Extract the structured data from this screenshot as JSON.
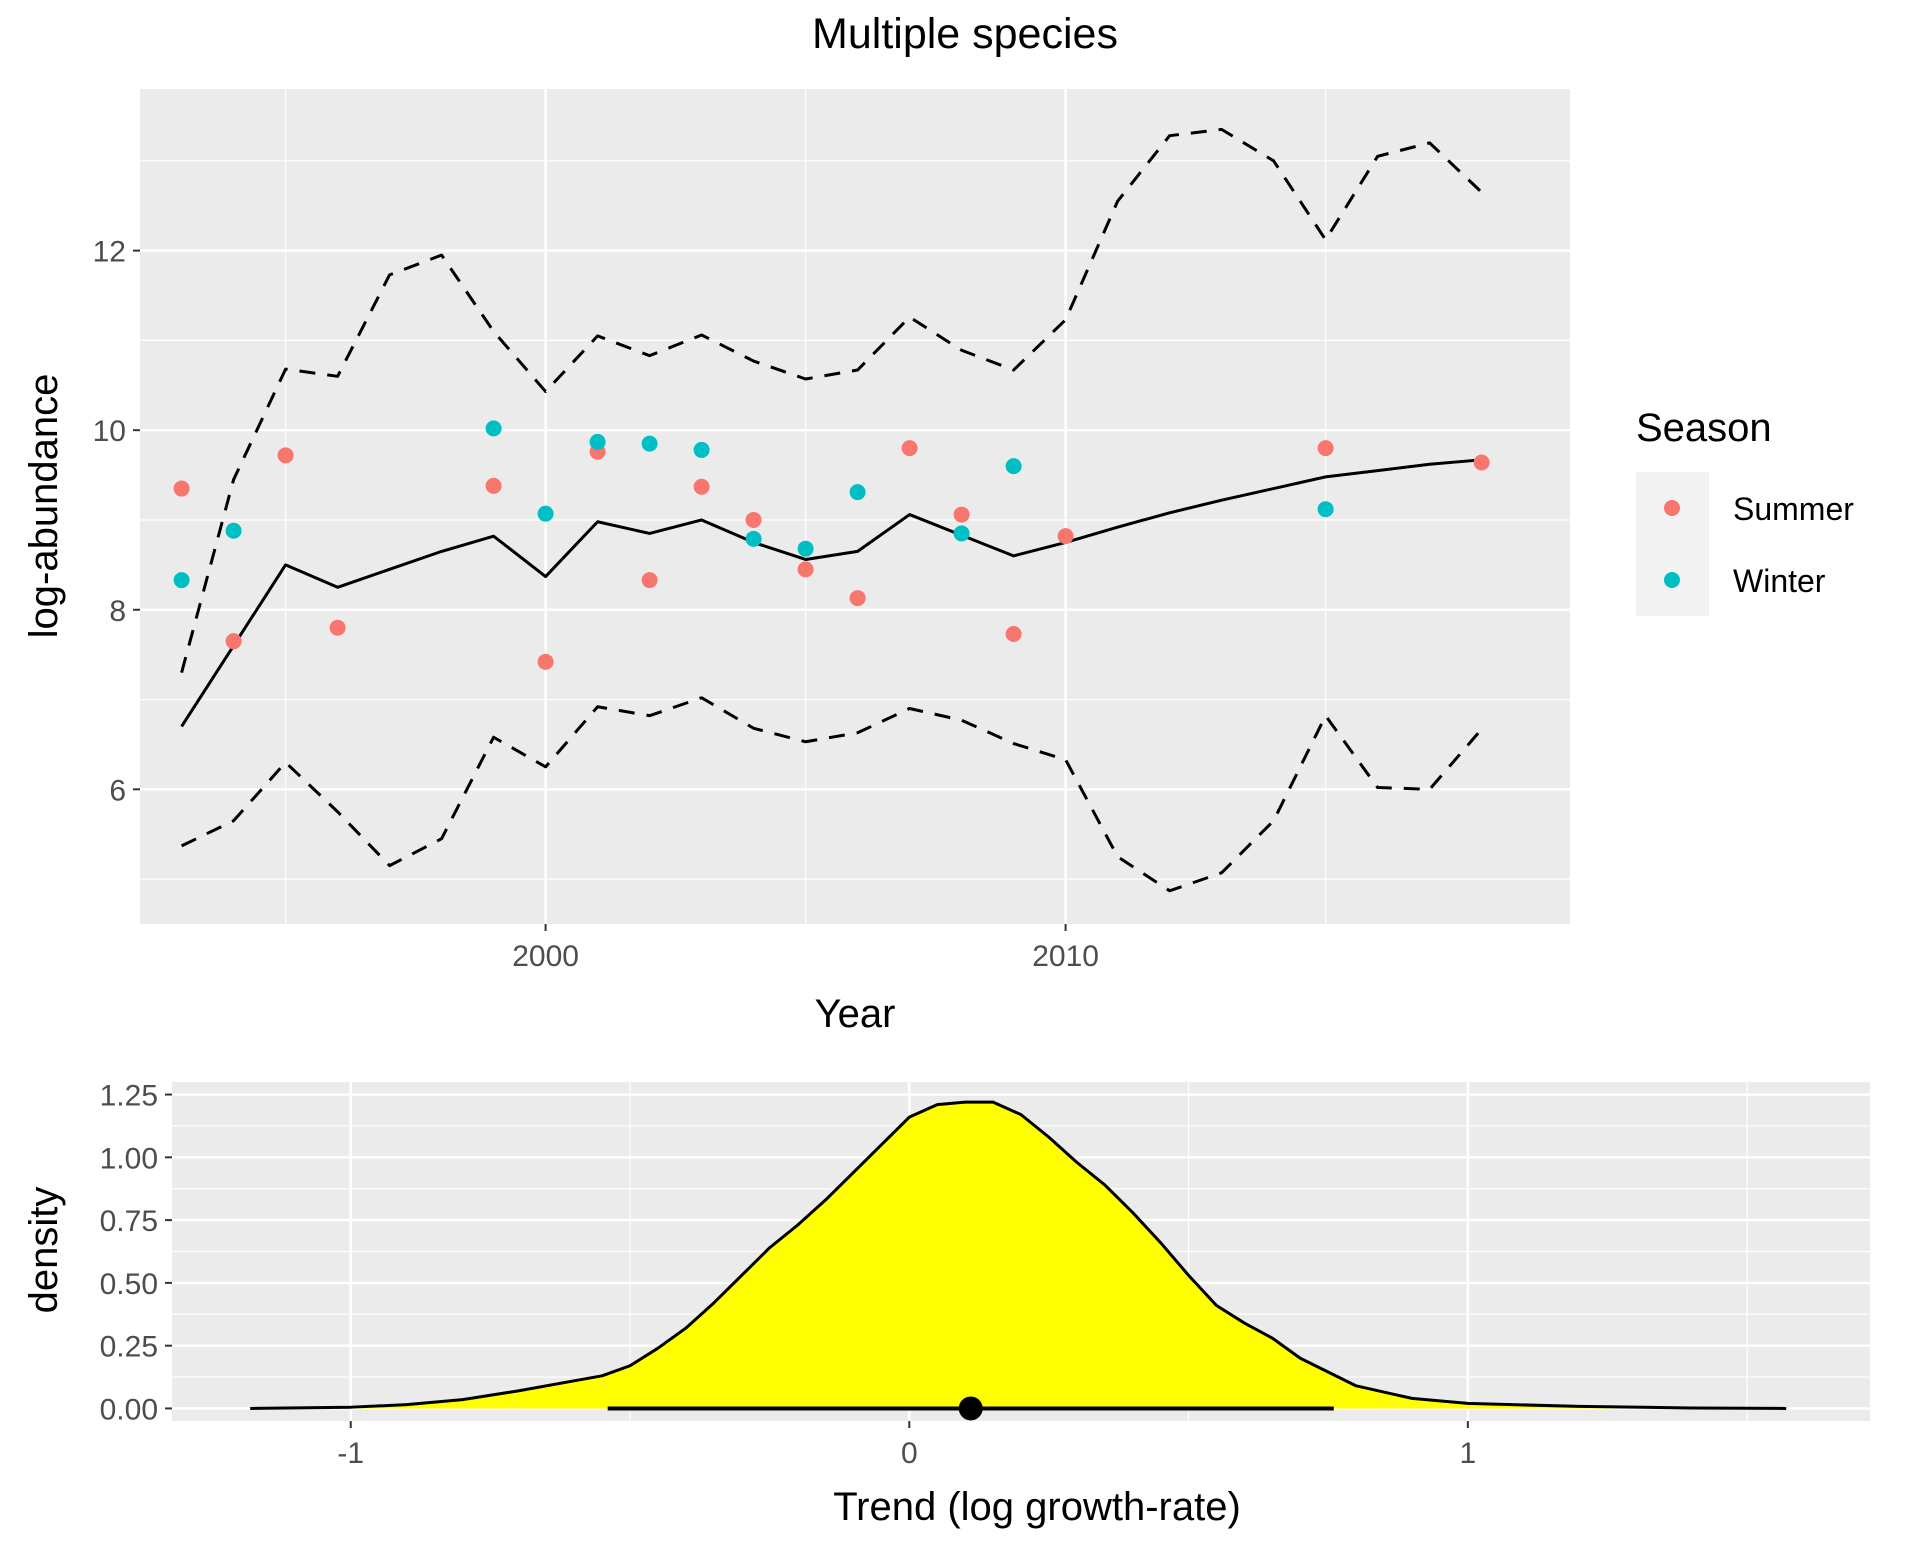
{
  "colors": {
    "panel_bg": "#ebebeb",
    "grid": "#ffffff",
    "summer": "#f8766d",
    "winter": "#00bfc4",
    "fill": "#ffff00",
    "line": "#000000",
    "tick_text": "#4d4d4d"
  },
  "chart_data": [
    {
      "type": "line",
      "title": "Multiple species",
      "xlabel": "Year",
      "ylabel": "log-abundance",
      "xlim": [
        1992.2,
        2019.7
      ],
      "ylim": [
        4.5,
        13.8
      ],
      "x_ticks": [
        2000,
        2010
      ],
      "x_tick_labels": [
        "2000",
        "2010"
      ],
      "y_ticks": [
        6,
        8,
        10,
        12
      ],
      "y_tick_labels": [
        "6",
        "8",
        "10",
        "12"
      ],
      "grid": true,
      "legend": {
        "title": "Season",
        "position": "right",
        "entries": [
          "Summer",
          "Winter"
        ]
      },
      "series": [
        {
          "style": "solid",
          "x": [
            1993,
            1994,
            1995,
            1996,
            1997,
            1998,
            1999,
            2000,
            2001,
            2002,
            2003,
            2004,
            2005,
            2006,
            2007,
            2008,
            2009,
            2010,
            2011,
            2012,
            2013,
            2014,
            2015,
            2016,
            2017,
            2018
          ],
          "y": [
            6.7,
            7.6,
            8.5,
            8.25,
            8.45,
            8.65,
            8.82,
            8.37,
            8.98,
            8.85,
            9.0,
            8.75,
            8.56,
            8.65,
            9.06,
            8.83,
            8.6,
            8.75,
            8.92,
            9.08,
            9.22,
            9.35,
            9.48,
            9.55,
            9.62,
            9.67
          ]
        },
        {
          "style": "dashed",
          "x": [
            1993,
            1994,
            1995,
            1996,
            1997,
            1998,
            1999,
            2000,
            2001,
            2002,
            2003,
            2004,
            2005,
            2006,
            2007,
            2008,
            2009,
            2010,
            2011,
            2012,
            2013,
            2014,
            2015,
            2016,
            2017,
            2018
          ],
          "y": [
            7.3,
            9.45,
            10.68,
            10.6,
            11.73,
            11.95,
            11.1,
            10.43,
            11.05,
            10.83,
            11.06,
            10.77,
            10.57,
            10.67,
            11.26,
            10.89,
            10.67,
            11.23,
            12.55,
            13.28,
            13.35,
            13.0,
            12.12,
            13.05,
            13.2,
            12.65
          ]
        },
        {
          "style": "dashed",
          "x": [
            1993,
            1994,
            1995,
            1996,
            1997,
            1998,
            1999,
            2000,
            2001,
            2002,
            2003,
            2004,
            2005,
            2006,
            2007,
            2008,
            2009,
            2010,
            2011,
            2012,
            2013,
            2014,
            2015,
            2016,
            2017,
            2018
          ],
          "y": [
            5.37,
            5.65,
            6.3,
            5.75,
            5.15,
            5.45,
            6.58,
            6.25,
            6.92,
            6.82,
            7.02,
            6.68,
            6.53,
            6.63,
            6.9,
            6.77,
            6.51,
            6.33,
            5.25,
            4.87,
            5.07,
            5.65,
            6.82,
            6.02,
            6.0,
            6.67
          ]
        },
        {
          "name": "Summer",
          "type": "scatter",
          "x": [
            1993,
            1994,
            1995,
            1996,
            1999,
            2000,
            2001,
            2002,
            2003,
            2004,
            2005,
            2006,
            2007,
            2008,
            2009,
            2010,
            2015,
            2018
          ],
          "y": [
            9.35,
            7.65,
            9.72,
            7.8,
            9.38,
            7.42,
            9.76,
            8.33,
            9.37,
            9.0,
            8.45,
            8.13,
            9.8,
            9.06,
            7.73,
            8.82,
            9.8,
            9.64
          ]
        },
        {
          "name": "Winter",
          "type": "scatter",
          "x": [
            1993,
            1994,
            1999,
            2000,
            2001,
            2002,
            2003,
            2004,
            2005,
            2006,
            2008,
            2009,
            2015
          ],
          "y": [
            8.33,
            8.88,
            10.02,
            9.07,
            9.87,
            9.85,
            9.78,
            8.79,
            8.68,
            9.31,
            8.85,
            9.6,
            9.12
          ]
        }
      ]
    },
    {
      "type": "area",
      "xlabel": "Trend (log growth-rate)",
      "ylabel": "density",
      "xlim": [
        -1.32,
        1.72
      ],
      "ylim": [
        -0.05,
        1.3
      ],
      "x_ticks": [
        -1,
        0,
        1
      ],
      "x_tick_labels": [
        "-1",
        "0",
        "1"
      ],
      "y_ticks": [
        0,
        0.25,
        0.5,
        0.75,
        1.0,
        1.25
      ],
      "y_tick_labels": [
        "0.00",
        "0.25",
        "0.50",
        "0.75",
        "1.00",
        "1.25"
      ],
      "grid": true,
      "x": [
        -1.18,
        -1.0,
        -0.9,
        -0.8,
        -0.7,
        -0.6,
        -0.55,
        -0.5,
        -0.45,
        -0.4,
        -0.35,
        -0.3,
        -0.25,
        -0.2,
        -0.15,
        -0.1,
        -0.05,
        0.0,
        0.05,
        0.1,
        0.15,
        0.2,
        0.25,
        0.3,
        0.35,
        0.4,
        0.45,
        0.5,
        0.55,
        0.6,
        0.65,
        0.7,
        0.8,
        0.9,
        1.0,
        1.2,
        1.4,
        1.57
      ],
      "y": [
        0.0,
        0.005,
        0.015,
        0.035,
        0.07,
        0.11,
        0.13,
        0.17,
        0.24,
        0.32,
        0.42,
        0.53,
        0.64,
        0.73,
        0.83,
        0.94,
        1.05,
        1.16,
        1.21,
        1.22,
        1.22,
        1.17,
        1.08,
        0.98,
        0.89,
        0.78,
        0.66,
        0.53,
        0.41,
        0.34,
        0.28,
        0.2,
        0.09,
        0.04,
        0.02,
        0.008,
        0.002,
        0.0
      ],
      "interval": {
        "low": -0.54,
        "high": 0.76,
        "point": 0.11
      }
    }
  ]
}
